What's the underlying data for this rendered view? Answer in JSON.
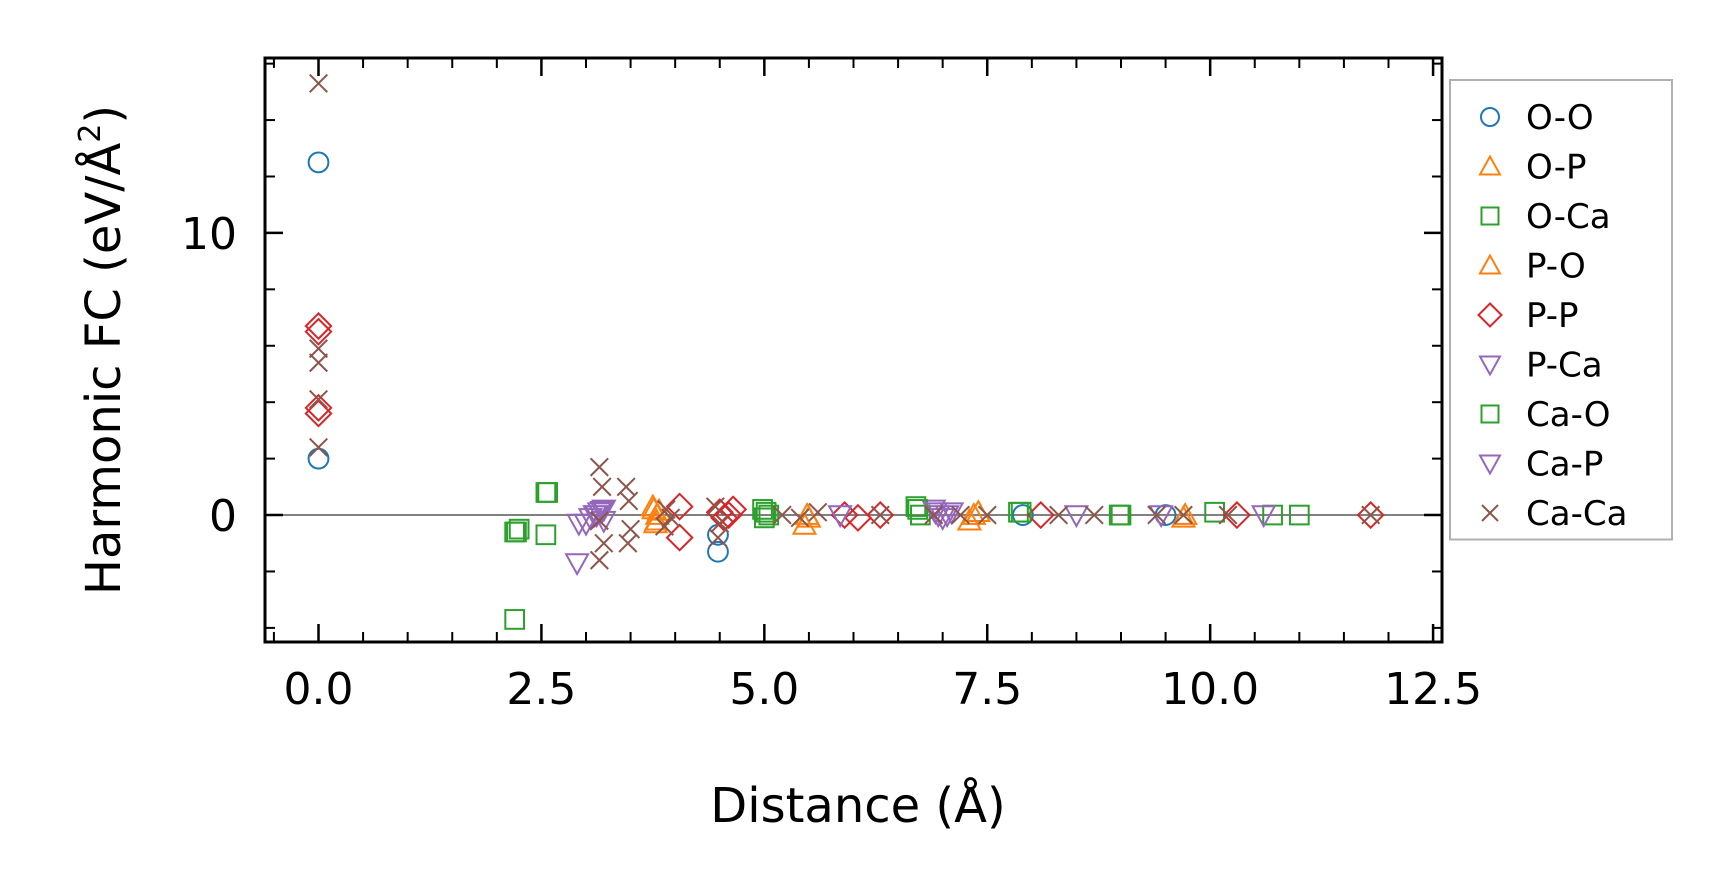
{
  "chart_data": {
    "type": "scatter",
    "title": "",
    "xlabel": "Distance (Å)",
    "ylabel_main": "Harmonic FC (eV/Å",
    "ylabel_sup": "2",
    "ylabel_close": ")",
    "xlim": [
      -0.6,
      12.6
    ],
    "ylim": [
      -4.5,
      16.2
    ],
    "xticks": [
      0.0,
      2.5,
      5.0,
      7.5,
      10.0,
      12.5
    ],
    "xtick_labels": [
      "0.0",
      "2.5",
      "5.0",
      "7.5",
      "10.0",
      "12.5"
    ],
    "yticks": [
      0,
      10
    ],
    "ytick_labels": [
      "0",
      "10"
    ],
    "zero_line": true,
    "legend_position": "outside-right",
    "series": [
      {
        "name": "O-O",
        "marker": "circle",
        "color": "#1f77b4",
        "x": [
          0.0,
          0.0,
          4.48,
          4.48,
          7.9,
          9.5
        ],
        "y": [
          12.5,
          2.0,
          -1.3,
          -0.7,
          0.0,
          0.0
        ]
      },
      {
        "name": "O-P",
        "marker": "triangle-up",
        "color": "#ff7f0e",
        "x": [
          3.75,
          3.8,
          3.78,
          3.82,
          5.45,
          5.5,
          7.3,
          7.4,
          9.7
        ],
        "y": [
          0.3,
          0.0,
          -0.3,
          0.15,
          -0.35,
          -0.1,
          -0.2,
          0.1,
          -0.1
        ]
      },
      {
        "name": "O-Ca",
        "marker": "square",
        "color": "#2ca02c",
        "x": [
          2.2,
          2.2,
          2.25,
          2.55,
          2.55,
          4.98,
          5.0,
          5.05,
          6.7,
          6.75,
          7.85,
          8.98,
          10.05,
          10.7,
          11.0
        ],
        "y": [
          -3.7,
          -0.6,
          -0.5,
          0.8,
          -0.7,
          0.2,
          -0.1,
          0.0,
          0.3,
          0.0,
          0.1,
          0.0,
          0.1,
          0.0,
          0.0
        ]
      },
      {
        "name": "P-O",
        "marker": "triangle-up",
        "color": "#ff7f0e",
        "x": [
          3.76,
          3.79,
          5.48,
          7.35,
          9.72
        ],
        "y": [
          0.2,
          -0.2,
          0.0,
          0.0,
          0.0
        ]
      },
      {
        "name": "P-P",
        "marker": "diamond",
        "color": "#d62728",
        "x": [
          0.0,
          0.0,
          0.0,
          0.0,
          4.05,
          4.05,
          4.5,
          4.55,
          4.6,
          4.65,
          5.9,
          6.05,
          6.3,
          8.1,
          10.3,
          11.8
        ],
        "y": [
          6.5,
          6.7,
          3.8,
          3.6,
          0.3,
          -0.8,
          0.1,
          -0.1,
          0.0,
          0.2,
          0.0,
          -0.1,
          0.0,
          0.0,
          0.0,
          0.0
        ]
      },
      {
        "name": "P-Ca",
        "marker": "triangle-down",
        "color": "#9467bd",
        "x": [
          2.9,
          3.0,
          3.05,
          3.1,
          3.15,
          3.2,
          3.2,
          5.85,
          6.9,
          6.95,
          7.0,
          7.1,
          8.5,
          9.45,
          10.6
        ],
        "y": [
          -1.7,
          -0.3,
          -0.1,
          0.0,
          0.1,
          -0.2,
          0.2,
          0.0,
          0.2,
          0.0,
          -0.1,
          0.1,
          0.0,
          0.0,
          0.0
        ]
      },
      {
        "name": "Ca-O",
        "marker": "square",
        "color": "#2ca02c",
        "x": [
          2.22,
          2.57,
          5.02,
          6.72,
          7.88,
          9.0
        ],
        "y": [
          -0.6,
          0.8,
          0.1,
          0.2,
          0.1,
          0.0
        ]
      },
      {
        "name": "Ca-P",
        "marker": "triangle-down",
        "color": "#9467bd",
        "x": [
          2.92,
          3.12,
          3.18,
          6.92,
          7.05
        ],
        "y": [
          -0.3,
          0.0,
          0.15,
          0.1,
          0.0
        ]
      },
      {
        "name": "Ca-Ca",
        "marker": "x",
        "color": "#8c564b",
        "x": [
          0.0,
          0.0,
          0.0,
          0.0,
          0.0,
          3.15,
          3.18,
          3.15,
          3.2,
          3.15,
          3.45,
          3.48,
          3.5,
          3.47,
          3.9,
          3.95,
          3.88,
          4.45,
          4.5,
          4.48,
          5.2,
          5.4,
          5.6,
          6.3,
          6.9,
          7.2,
          7.5,
          8.3,
          8.7,
          9.4,
          9.7,
          10.2,
          11.8
        ],
        "y": [
          15.3,
          5.9,
          5.4,
          4.1,
          2.4,
          1.7,
          1.0,
          -0.2,
          -1.0,
          -1.6,
          1.0,
          0.5,
          -0.5,
          -1.0,
          0.2,
          -0.1,
          -0.4,
          0.3,
          -0.3,
          -0.8,
          0.0,
          -0.1,
          0.1,
          0.0,
          0.0,
          0.0,
          0.0,
          0.0,
          0.0,
          0.0,
          0.0,
          0.0,
          0.0
        ]
      }
    ]
  }
}
